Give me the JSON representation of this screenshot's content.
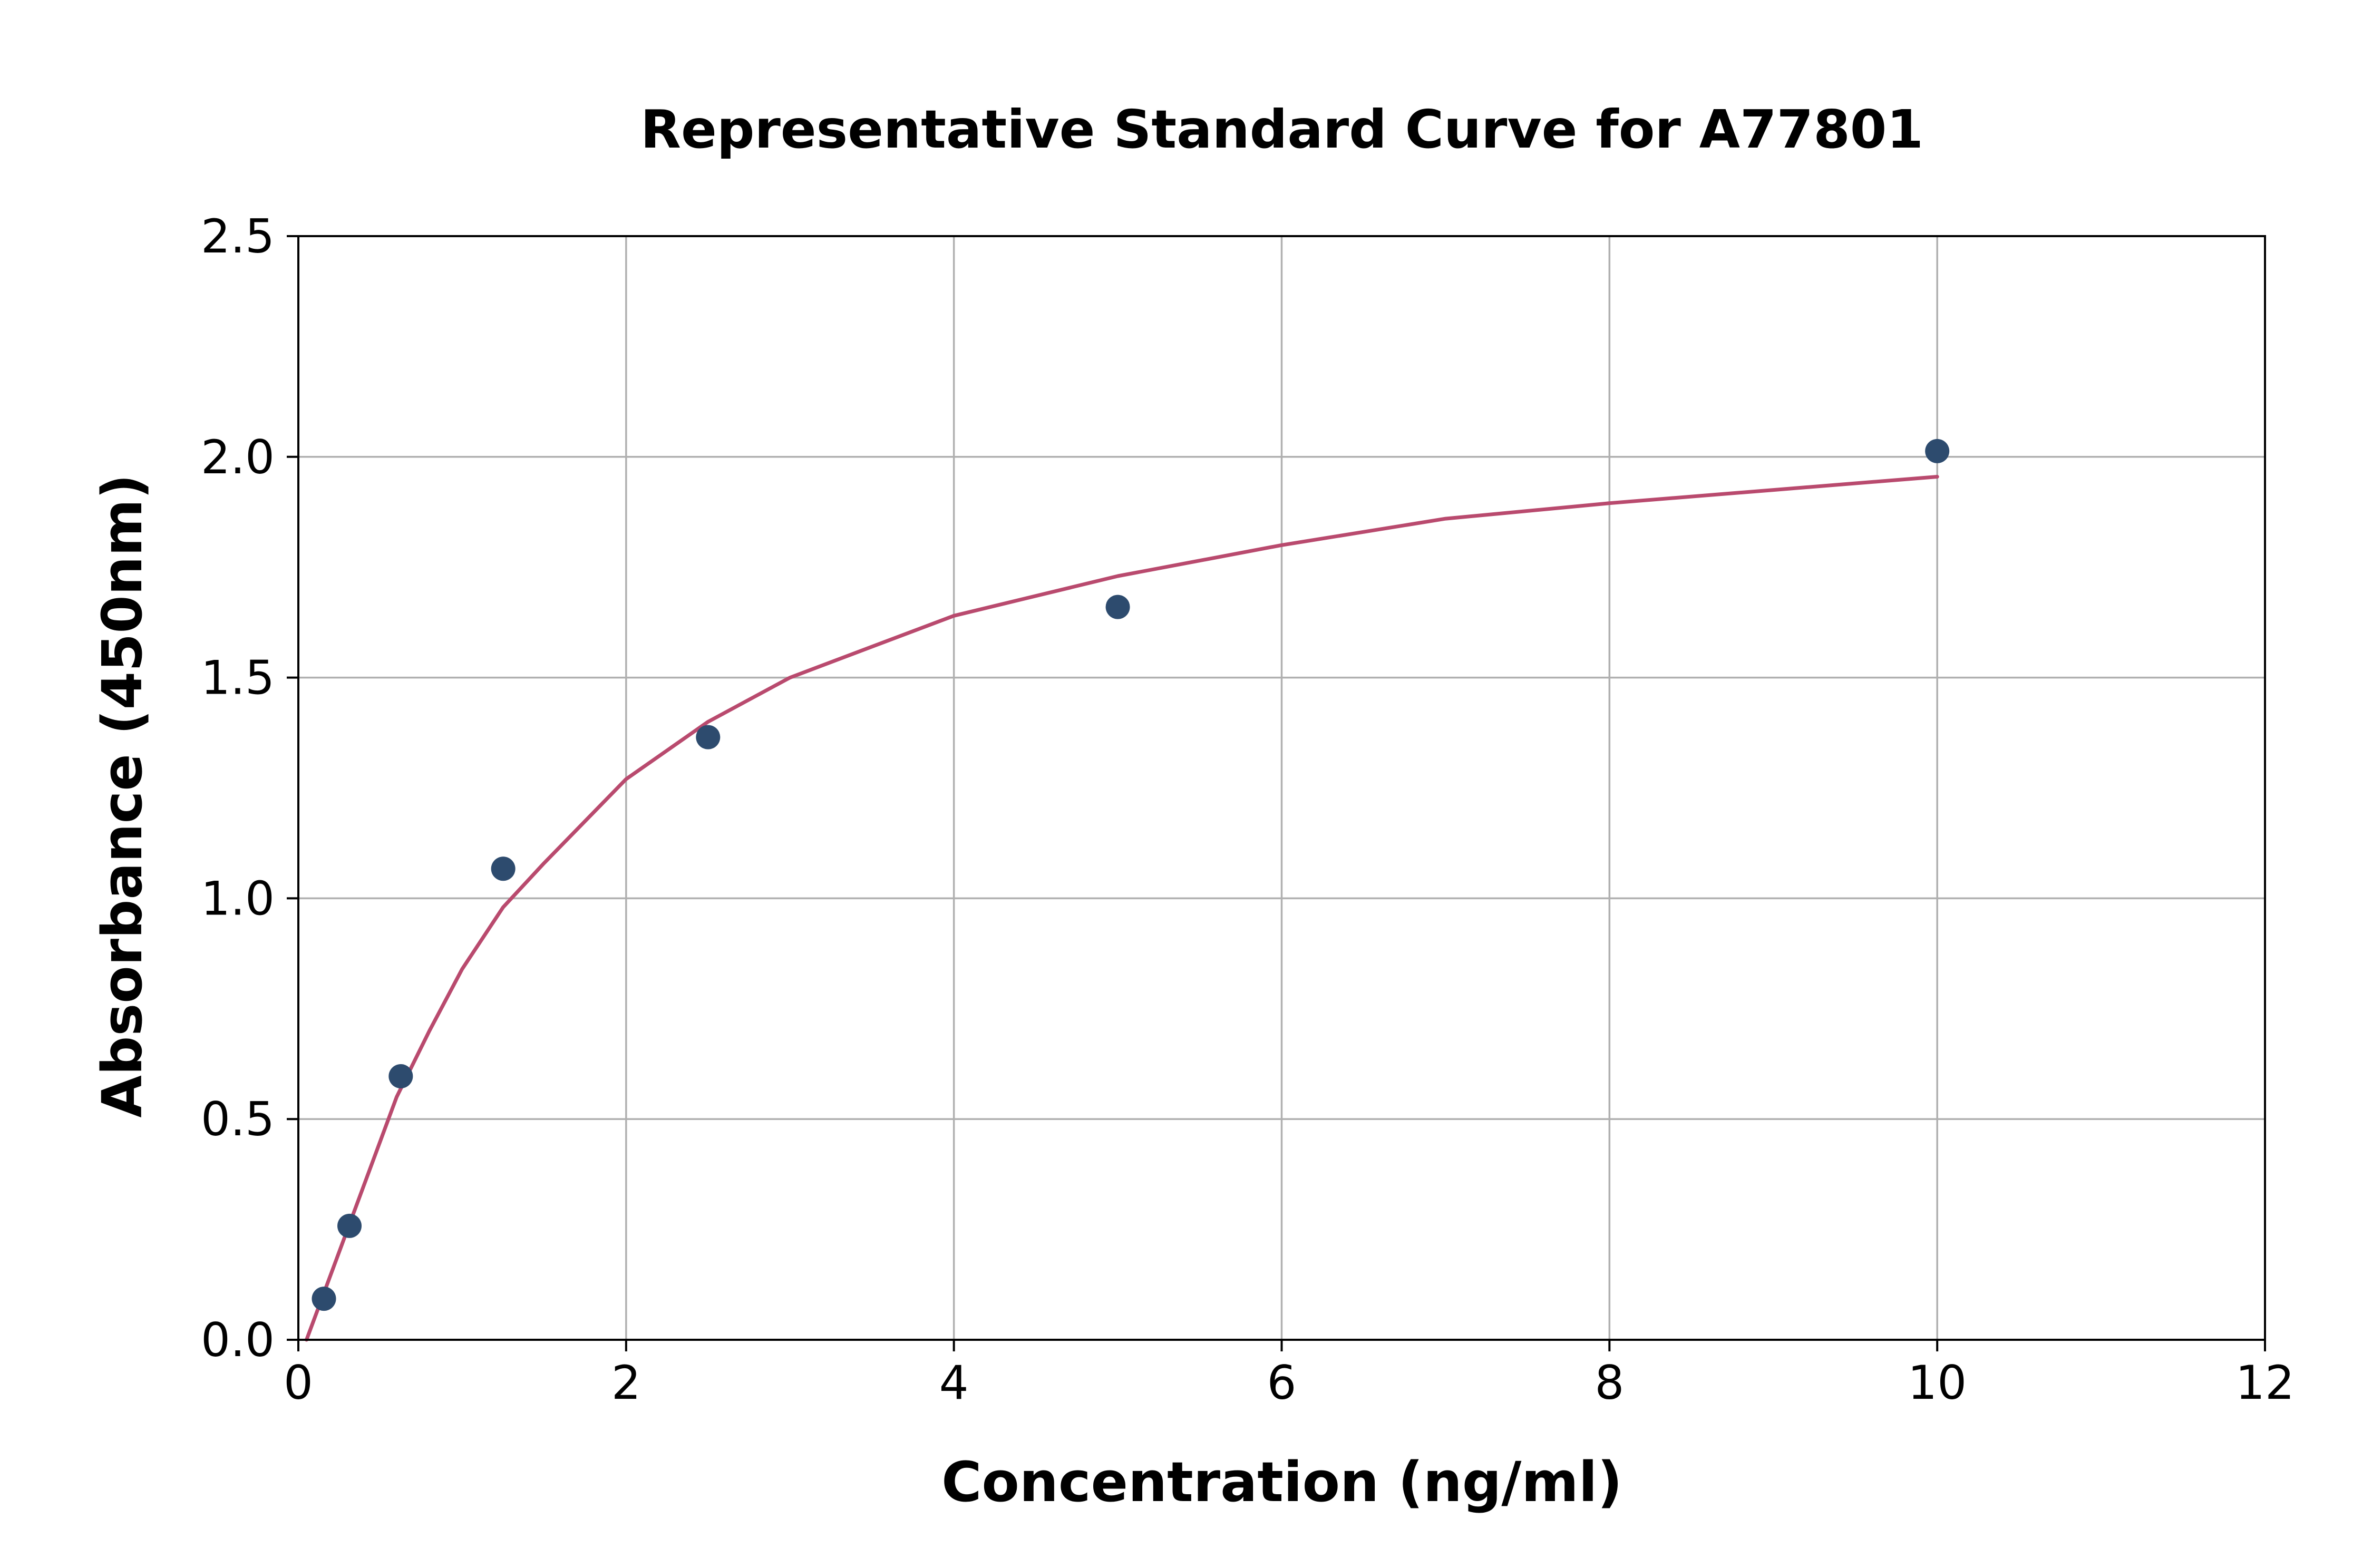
{
  "chart_data": {
    "type": "scatter",
    "title": "Representative Standard Curve for A77801",
    "xlabel": "Concentration (ng/ml)",
    "ylabel": "Absorbance (450nm)",
    "xlim": [
      0,
      12
    ],
    "ylim": [
      0,
      2.5
    ],
    "xticks": [
      0,
      2,
      4,
      6,
      8,
      10,
      12
    ],
    "xtick_labels": [
      "0",
      "2",
      "4",
      "6",
      "8",
      "10",
      "12"
    ],
    "yticks": [
      0,
      0.5,
      1.0,
      1.5,
      2.0,
      2.5
    ],
    "ytick_labels": [
      "0.0",
      "0.5",
      "1.0",
      "1.5",
      "2.0",
      "2.5"
    ],
    "grid": true,
    "series": [
      {
        "kind": "points",
        "color": "#2d4b6e",
        "x": [
          0.156,
          0.312,
          0.625,
          1.25,
          2.5,
          5,
          10
        ],
        "y": [
          0.093,
          0.258,
          0.597,
          1.067,
          1.365,
          1.66,
          2.013
        ]
      },
      {
        "kind": "fit-curve",
        "color": "#b94a6e",
        "x": [
          0.05,
          0.2,
          0.4,
          0.6,
          0.8,
          1.0,
          1.25,
          1.5,
          2.0,
          2.5,
          3.0,
          4.0,
          5.0,
          6.0,
          7.0,
          8.0,
          9.0,
          10.0
        ],
        "y": [
          0.0,
          0.15,
          0.35,
          0.55,
          0.7,
          0.84,
          0.98,
          1.08,
          1.27,
          1.4,
          1.5,
          1.64,
          1.73,
          1.8,
          1.86,
          1.895,
          1.925,
          1.955
        ]
      }
    ]
  }
}
